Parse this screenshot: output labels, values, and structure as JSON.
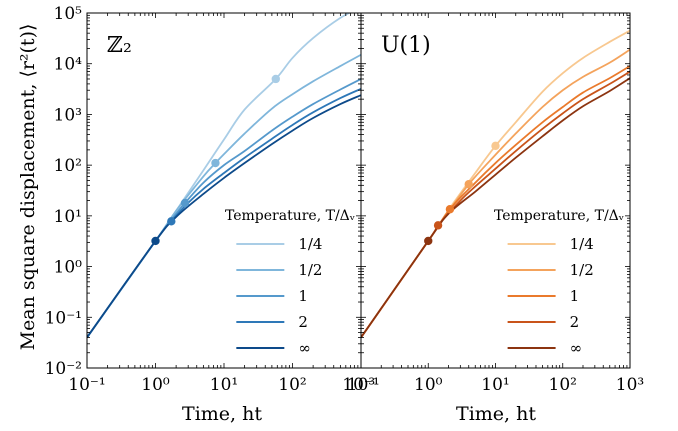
{
  "figure": {
    "ylabel": "Mean square displacement, ⟨r²(t)⟩",
    "xlabel": "Time, ht"
  },
  "chart_data": [
    {
      "type": "line",
      "title": "ℤ₂",
      "xlabel": "Time, ht",
      "ylabel": "Mean square displacement, ⟨r²(t)⟩",
      "xscale": "log",
      "yscale": "log",
      "xlim": [
        0.1,
        1000
      ],
      "ylim": [
        0.01,
        100000
      ],
      "x_ticks": [
        "10⁻¹",
        "10⁰",
        "10¹",
        "10²",
        "10³"
      ],
      "y_ticks": [
        "10⁻²",
        "10⁻¹",
        "10⁰",
        "10¹",
        "10²",
        "10³",
        "10⁴",
        "10⁵"
      ],
      "legend_title": "Temperature, T/Δᵥ",
      "legend_position": "lower-right",
      "grid": false,
      "series": [
        {
          "name": "1/4",
          "color": "#a9cde6",
          "x": [
            0.1,
            1,
            2,
            5,
            10,
            20,
            57,
            100,
            200,
            500,
            1000
          ],
          "y": [
            0.04,
            3.2,
            12.6,
            79,
            320,
            1250,
            5000,
            13000,
            32000,
            80000,
            130000
          ],
          "marker": {
            "x": 57,
            "y": 5000
          }
        },
        {
          "name": "1/2",
          "color": "#7fb6db",
          "x": [
            0.1,
            1,
            2,
            5,
            7.5,
            10,
            20,
            50,
            100,
            200,
            500,
            1000
          ],
          "y": [
            0.04,
            3.2,
            12.6,
            60,
            110,
            165,
            420,
            1300,
            2500,
            4500,
            9000,
            15000
          ],
          "marker": {
            "x": 7.5,
            "y": 110
          }
        },
        {
          "name": "1",
          "color": "#5599cc",
          "x": [
            0.1,
            1,
            2,
            2.7,
            5,
            10,
            20,
            50,
            100,
            200,
            500,
            1000
          ],
          "y": [
            0.04,
            3.2,
            11,
            18,
            45,
            100,
            190,
            480,
            900,
            1600,
            3100,
            5000
          ],
          "marker": {
            "x": 2.7,
            "y": 18
          }
        },
        {
          "name": "2",
          "color": "#2e78b8",
          "x": [
            0.1,
            1,
            1.7,
            3,
            5,
            10,
            20,
            50,
            100,
            200,
            500,
            1000
          ],
          "y": [
            0.04,
            3.2,
            7.8,
            18,
            34,
            70,
            140,
            330,
            620,
            1100,
            2100,
            3200
          ],
          "marker": {
            "x": 1.7,
            "y": 7.8
          }
        },
        {
          "name": "∞",
          "color": "#0d4a8a",
          "x": [
            0.1,
            1,
            2,
            5,
            10,
            20,
            50,
            100,
            200,
            500,
            1000
          ],
          "y": [
            0.04,
            3.2,
            9.5,
            27,
            56,
            110,
            260,
            480,
            850,
            1600,
            2400
          ],
          "marker": {
            "x": 1,
            "y": 3.2
          }
        }
      ]
    },
    {
      "type": "line",
      "title": "U(1)",
      "xlabel": "Time, ht",
      "xscale": "log",
      "yscale": "log",
      "xlim": [
        0.1,
        1000
      ],
      "ylim": [
        0.01,
        100000
      ],
      "x_ticks": [
        "10⁻¹",
        "10⁰",
        "10¹",
        "10²",
        "10³"
      ],
      "legend_title": "Temperature, T/Δᵥ",
      "legend_position": "lower-right",
      "grid": false,
      "series": [
        {
          "name": "1/4",
          "color": "#f8c890",
          "x": [
            0.1,
            1,
            2,
            5,
            10,
            20,
            50,
            100,
            200,
            500,
            1000
          ],
          "y": [
            0.04,
            3.2,
            13,
            70,
            240,
            700,
            2800,
            6500,
            13000,
            27000,
            45000
          ],
          "marker": {
            "x": 10,
            "y": 240
          }
        },
        {
          "name": "1/2",
          "color": "#f4a35c",
          "x": [
            0.1,
            1,
            2,
            4,
            10,
            20,
            50,
            100,
            200,
            500,
            1000
          ],
          "y": [
            0.04,
            3.2,
            12,
            42,
            160,
            420,
            1400,
            3000,
            5500,
            10500,
            19000
          ],
          "marker": {
            "x": 4,
            "y": 42
          }
        },
        {
          "name": "1",
          "color": "#ea7a2c",
          "x": [
            0.1,
            1,
            2.1,
            5,
            10,
            20,
            50,
            100,
            200,
            500,
            1000
          ],
          "y": [
            0.04,
            3.2,
            13.5,
            45,
            110,
            250,
            700,
            1400,
            2700,
            5200,
            9000
          ],
          "marker": {
            "x": 2.1,
            "y": 13.5
          }
        },
        {
          "name": "2",
          "color": "#c9541a",
          "x": [
            0.1,
            1,
            1.4,
            3,
            5,
            10,
            20,
            50,
            100,
            200,
            500,
            1000
          ],
          "y": [
            0.04,
            3.2,
            6.5,
            20,
            38,
            85,
            190,
            520,
            1050,
            2000,
            4000,
            7000
          ],
          "marker": {
            "x": 1.4,
            "y": 6.5
          }
        },
        {
          "name": "∞",
          "color": "#8c3410",
          "x": [
            0.1,
            1,
            2,
            5,
            10,
            20,
            50,
            100,
            200,
            500,
            1000
          ],
          "y": [
            0.04,
            3.2,
            11,
            30,
            65,
            140,
            370,
            760,
            1450,
            2900,
            5200
          ],
          "marker": {
            "x": 1,
            "y": 3.2
          }
        }
      ]
    }
  ]
}
